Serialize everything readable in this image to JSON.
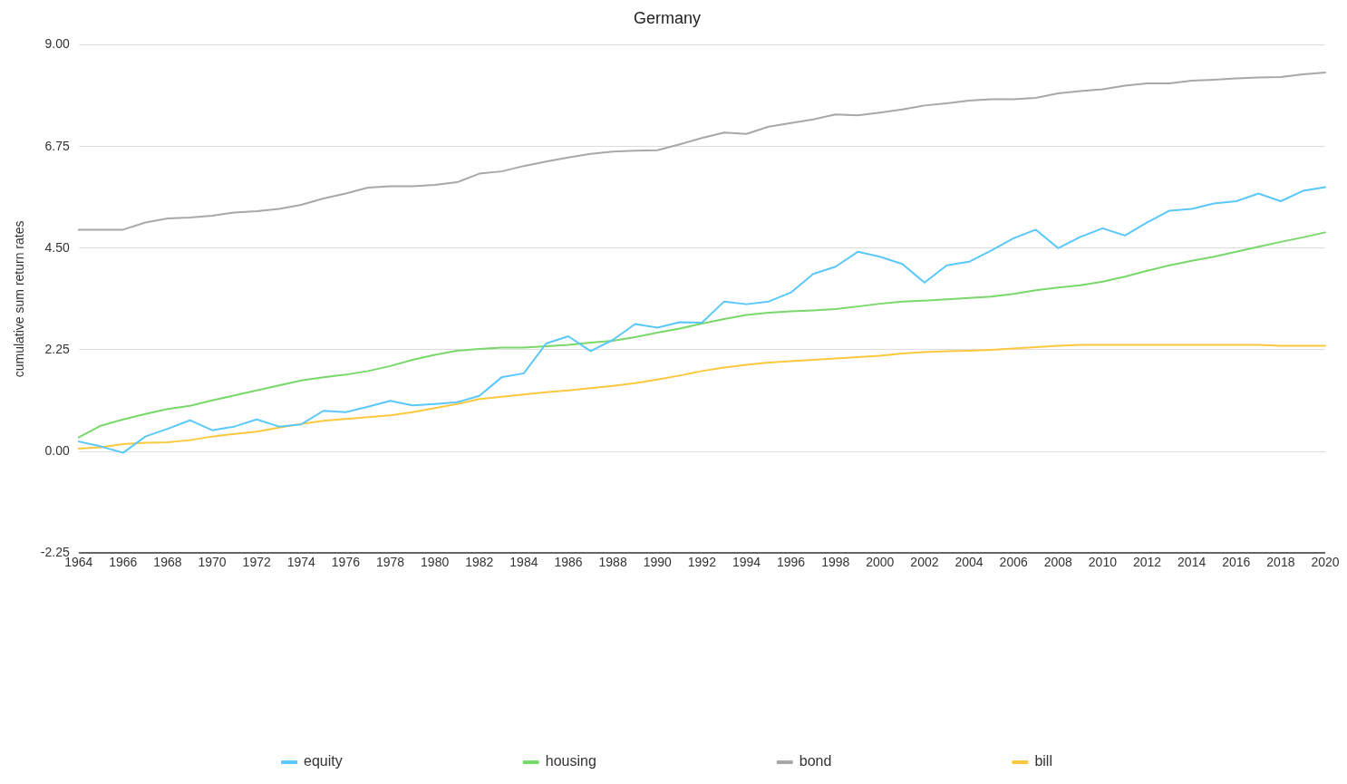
{
  "chart_data": {
    "type": "line",
    "title": "Germany",
    "ylabel": "cumulative sum return rates",
    "categories": [
      "1964",
      null,
      "1966",
      null,
      "1968",
      null,
      "1970",
      null,
      "1972",
      null,
      "1974",
      null,
      "1976",
      null,
      "1978",
      null,
      "1980",
      null,
      "1982",
      null,
      "1984",
      null,
      "1986",
      null,
      "1988",
      null,
      "1990",
      null,
      "1992",
      null,
      "1994",
      null,
      "1996",
      null,
      "1998",
      null,
      "2000",
      null,
      "2002",
      null,
      "2004",
      null,
      "2006",
      null,
      "2008",
      null,
      "2010",
      null,
      "2012",
      null,
      "2014",
      null,
      "2016",
      null,
      "2018",
      null,
      "2020"
    ],
    "series": [
      {
        "name": "equity",
        "color": "#5ac8fa",
        "values": [
          0.22,
          0.11,
          -0.03,
          0.33,
          0.5,
          0.69,
          0.47,
          0.55,
          0.71,
          0.55,
          0.6,
          0.9,
          0.87,
          0.99,
          1.12,
          1.02,
          1.05,
          1.09,
          1.23,
          1.64,
          1.73,
          2.39,
          2.55,
          2.22,
          2.47,
          2.82,
          2.74,
          2.86,
          2.85,
          3.32,
          3.26,
          3.32,
          3.52,
          3.93,
          4.09,
          4.42,
          4.31,
          4.15,
          3.74,
          4.12,
          4.2,
          4.45,
          4.72,
          4.91,
          4.5,
          4.75,
          4.94,
          4.78,
          5.07,
          5.33,
          5.37,
          5.49,
          5.54,
          5.71,
          5.54,
          5.77,
          5.85
        ]
      },
      {
        "name": "housing",
        "color": "#79d86a",
        "values": [
          0.31,
          0.57,
          0.71,
          0.83,
          0.94,
          1.01,
          1.13,
          1.24,
          1.35,
          1.46,
          1.57,
          1.64,
          1.7,
          1.78,
          1.89,
          2.03,
          2.14,
          2.23,
          2.27,
          2.3,
          2.3,
          2.33,
          2.36,
          2.41,
          2.45,
          2.53,
          2.63,
          2.72,
          2.83,
          2.93,
          3.02,
          3.07,
          3.1,
          3.12,
          3.15,
          3.21,
          3.27,
          3.32,
          3.34,
          3.37,
          3.4,
          3.43,
          3.49,
          3.57,
          3.63,
          3.68,
          3.76,
          3.87,
          4.0,
          4.12,
          4.22,
          4.31,
          4.42,
          4.53,
          4.64,
          4.74,
          4.85
        ]
      },
      {
        "name": "bond",
        "color": "#a8a8a8",
        "values": [
          4.91,
          4.91,
          4.91,
          5.07,
          5.16,
          5.18,
          5.22,
          5.29,
          5.32,
          5.37,
          5.46,
          5.6,
          5.71,
          5.84,
          5.87,
          5.87,
          5.9,
          5.96,
          6.15,
          6.2,
          6.32,
          6.42,
          6.51,
          6.59,
          6.64,
          6.66,
          6.67,
          6.8,
          6.94,
          7.06,
          7.03,
          7.19,
          7.27,
          7.35,
          7.46,
          7.44,
          7.5,
          7.57,
          7.66,
          7.71,
          7.77,
          7.8,
          7.8,
          7.83,
          7.93,
          7.98,
          8.02,
          8.1,
          8.15,
          8.15,
          8.21,
          8.23,
          8.26,
          8.28,
          8.29,
          8.35,
          8.39
        ]
      },
      {
        "name": "bill",
        "color": "#fcc93e",
        "values": [
          0.06,
          0.09,
          0.16,
          0.19,
          0.2,
          0.25,
          0.33,
          0.39,
          0.44,
          0.53,
          0.61,
          0.68,
          0.72,
          0.76,
          0.8,
          0.87,
          0.96,
          1.05,
          1.16,
          1.21,
          1.26,
          1.31,
          1.35,
          1.4,
          1.45,
          1.51,
          1.59,
          1.68,
          1.78,
          1.86,
          1.92,
          1.97,
          2.0,
          2.03,
          2.06,
          2.09,
          2.12,
          2.17,
          2.2,
          2.22,
          2.23,
          2.25,
          2.28,
          2.31,
          2.34,
          2.36,
          2.36,
          2.36,
          2.36,
          2.36,
          2.36,
          2.36,
          2.36,
          2.36,
          2.34,
          2.34,
          2.34
        ]
      }
    ],
    "ylim": [
      -2.25,
      9
    ],
    "yticks": [
      {
        "value": -2.25,
        "label": "-2.25"
      },
      {
        "value": 0,
        "label": "0.00"
      },
      {
        "value": 2.25,
        "label": "2.25"
      },
      {
        "value": 4.5,
        "label": "4.50"
      },
      {
        "value": 6.75,
        "label": "6.75"
      },
      {
        "value": 9,
        "label": "9.00"
      }
    ],
    "grid": "y",
    "legend": "bottom",
    "marker": "none",
    "line_style": "solid"
  }
}
